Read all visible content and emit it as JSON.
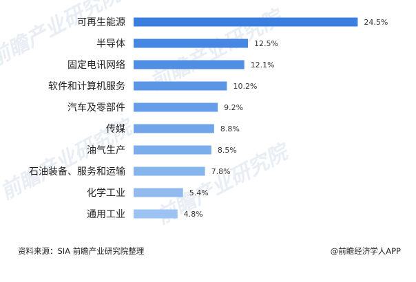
{
  "chart_data": {
    "type": "bar",
    "orientation": "horizontal",
    "categories": [
      "可再生能源",
      "半导体",
      "固定电讯网络",
      "软件和计算机服务",
      "汽车及零部件",
      "传媒",
      "油气生产",
      "石油装备、服务和运输",
      "化学工业",
      "通用工业"
    ],
    "values": [
      24.5,
      12.5,
      12.1,
      10.2,
      9.2,
      8.8,
      8.5,
      7.8,
      5.4,
      4.8
    ],
    "value_labels": [
      "24.5%",
      "12.5%",
      "12.1%",
      "10.2%",
      "9.2%",
      "8.8%",
      "8.5%",
      "7.8%",
      "5.4%",
      "4.8%"
    ],
    "unit": "%",
    "grid": false,
    "legend": "none",
    "colors": {
      "bar_top": "#3a7fe0",
      "bar_bottom": "#9cc3f1"
    }
  },
  "footer": {
    "source": "资料来源：SIA 前瞻产业研究院整理",
    "brand": "@前瞻经济学人APP"
  }
}
